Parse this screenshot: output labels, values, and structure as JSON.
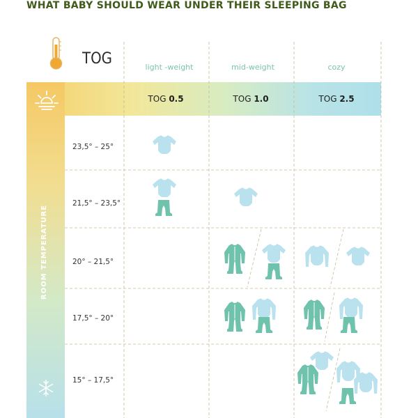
{
  "title": "WHAT BABY SHOULD WEAR UNDER THEIR SLEEPING BAG",
  "tog_label": "TOG",
  "columns": [
    {
      "name": "light -weight",
      "tog_prefix": "TOG ",
      "tog_value": "0.5"
    },
    {
      "name": "mid-weight",
      "tog_prefix": "TOG ",
      "tog_value": "1.0"
    },
    {
      "name": "cozy",
      "tog_prefix": "TOG ",
      "tog_value": "2.5"
    }
  ],
  "axis_label": "ROOM TEMPERATURE",
  "rows": [
    {
      "label": "23,5° – 25°"
    },
    {
      "label": "21,5° – 23,5°"
    },
    {
      "label": "20° – 21,5°"
    },
    {
      "label": "17,5° – 20°"
    },
    {
      "label": "15° – 17,5°"
    }
  ],
  "icons": {
    "thermometer": "thermometer-icon",
    "sun": "sun-icon",
    "snowflake": "snowflake-icon",
    "bodysuit": "short-sleeve-bodysuit-icon",
    "long_bodysuit": "long-sleeve-bodysuit-icon",
    "pants": "pants-icon",
    "sleepsuit": "footed-sleepsuit-icon"
  },
  "colors": {
    "title": "#3f5a1a",
    "light_blue": "#b9e2ee",
    "teal": "#6fc2ab",
    "header_text": "#7cc3a9",
    "grid": "#c8b99a"
  }
}
